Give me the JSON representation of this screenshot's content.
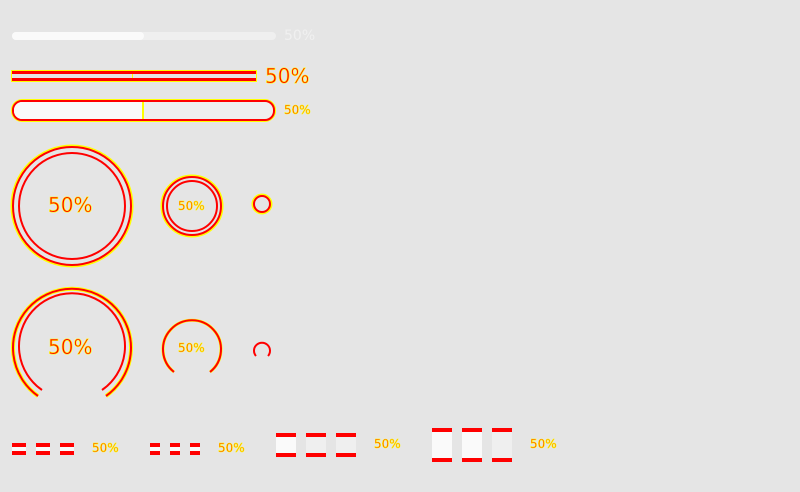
{
  "progress_percent": 50,
  "line_progress": [
    {
      "label": "50%"
    },
    {
      "label": "50%"
    },
    {
      "label": "50%"
    }
  ],
  "circle_progress": [
    {
      "label": "50%"
    },
    {
      "label": "50%"
    },
    {
      "label": ""
    }
  ],
  "dashboard_progress": [
    {
      "label": "50%"
    },
    {
      "label": "50%"
    },
    {
      "label": ""
    }
  ],
  "steps_progress": [
    {
      "steps": 3,
      "label": "50%"
    },
    {
      "steps": 3,
      "label": "50%"
    },
    {
      "steps": 3,
      "label": "50%"
    },
    {
      "steps": 3,
      "label": "50%"
    }
  ],
  "colors": {
    "background": "#e5e5e5",
    "stroke": "#ff0000",
    "outline": "#ffff00",
    "track": "#efefef",
    "fill": "#fafafa"
  }
}
